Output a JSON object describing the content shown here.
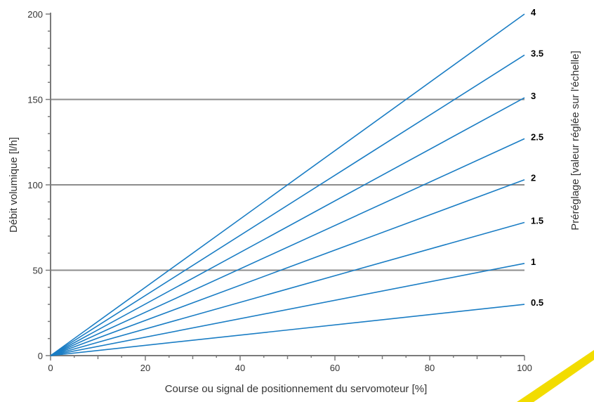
{
  "chart_data": {
    "type": "line",
    "title": "",
    "xlabel": "Course ou signal de positionnement du servomoteur [%]",
    "ylabel": "Débit volumique [l/h]",
    "right_label": "Préréglage [valeur réglée sur l'échelle]",
    "xlim": [
      0,
      100
    ],
    "ylim": [
      0,
      200
    ],
    "x_ticks": [
      "0",
      "20",
      "40",
      "60",
      "80",
      "100"
    ],
    "y_ticks": [
      "0",
      "50",
      "100",
      "150",
      "200"
    ],
    "grid": {
      "horizontal_major_at": [
        50,
        100,
        150
      ],
      "vertical": false
    },
    "legend": "labels at right end of each line",
    "series": [
      {
        "name": "0.5",
        "x": [
          0,
          100
        ],
        "y": [
          0,
          30
        ]
      },
      {
        "name": "1",
        "x": [
          0,
          100
        ],
        "y": [
          0,
          54
        ]
      },
      {
        "name": "1.5",
        "x": [
          0,
          100
        ],
        "y": [
          0,
          78
        ]
      },
      {
        "name": "2",
        "x": [
          0,
          100
        ],
        "y": [
          0,
          103
        ]
      },
      {
        "name": "2.5",
        "x": [
          0,
          100
        ],
        "y": [
          0,
          127
        ]
      },
      {
        "name": "3",
        "x": [
          0,
          100
        ],
        "y": [
          0,
          151
        ]
      },
      {
        "name": "3.5",
        "x": [
          0,
          100
        ],
        "y": [
          0,
          176
        ]
      },
      {
        "name": "4",
        "x": [
          0,
          100
        ],
        "y": [
          0,
          200
        ]
      }
    ],
    "colors": {
      "line": "#1a7dc4",
      "grid": "#8c8c8c",
      "axis": "#7a7a7a",
      "decoration": "#f2dc00"
    }
  }
}
